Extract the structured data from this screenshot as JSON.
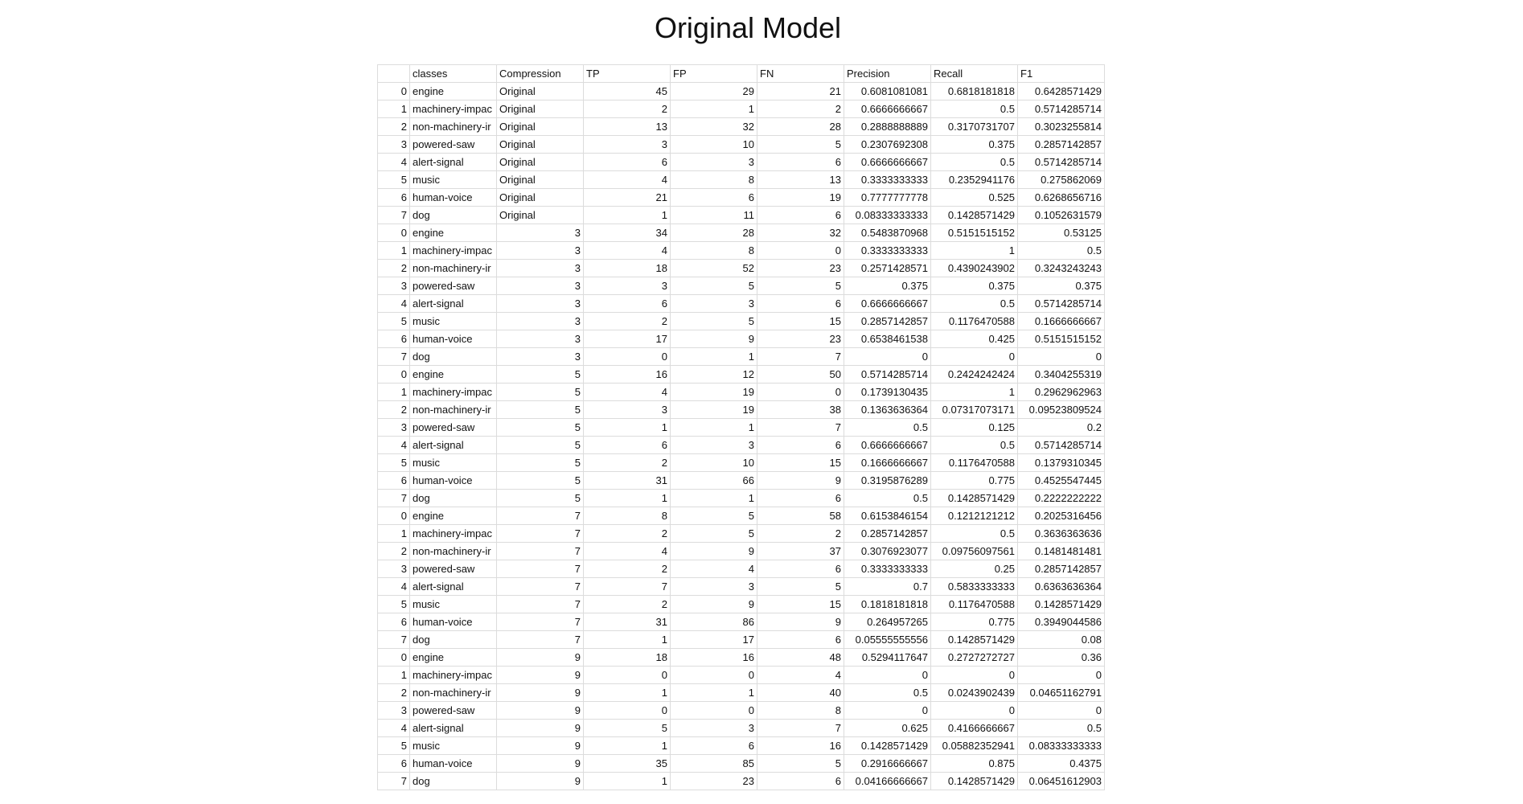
{
  "title": "Original Model",
  "chart_data": {
    "type": "table",
    "title": "Original Model",
    "columns": [
      "",
      "classes",
      "Compression",
      "TP",
      "FP",
      "FN",
      "Precision",
      "Recall",
      "F1"
    ],
    "rows": [
      [
        "0",
        "engine",
        "Original",
        "45",
        "29",
        "21",
        "0.6081081081",
        "0.6818181818",
        "0.6428571429"
      ],
      [
        "1",
        "machinery-impac",
        "Original",
        "2",
        "1",
        "2",
        "0.6666666667",
        "0.5",
        "0.5714285714"
      ],
      [
        "2",
        "non-machinery-ir",
        "Original",
        "13",
        "32",
        "28",
        "0.2888888889",
        "0.3170731707",
        "0.3023255814"
      ],
      [
        "3",
        "powered-saw",
        "Original",
        "3",
        "10",
        "5",
        "0.2307692308",
        "0.375",
        "0.2857142857"
      ],
      [
        "4",
        "alert-signal",
        "Original",
        "6",
        "3",
        "6",
        "0.6666666667",
        "0.5",
        "0.5714285714"
      ],
      [
        "5",
        "music",
        "Original",
        "4",
        "8",
        "13",
        "0.3333333333",
        "0.2352941176",
        "0.275862069"
      ],
      [
        "6",
        "human-voice",
        "Original",
        "21",
        "6",
        "19",
        "0.7777777778",
        "0.525",
        "0.6268656716"
      ],
      [
        "7",
        "dog",
        "Original",
        "1",
        "11",
        "6",
        "0.08333333333",
        "0.1428571429",
        "0.1052631579"
      ],
      [
        "0",
        "engine",
        "3",
        "34",
        "28",
        "32",
        "0.5483870968",
        "0.5151515152",
        "0.53125"
      ],
      [
        "1",
        "machinery-impac",
        "3",
        "4",
        "8",
        "0",
        "0.3333333333",
        "1",
        "0.5"
      ],
      [
        "2",
        "non-machinery-ir",
        "3",
        "18",
        "52",
        "23",
        "0.2571428571",
        "0.4390243902",
        "0.3243243243"
      ],
      [
        "3",
        "powered-saw",
        "3",
        "3",
        "5",
        "5",
        "0.375",
        "0.375",
        "0.375"
      ],
      [
        "4",
        "alert-signal",
        "3",
        "6",
        "3",
        "6",
        "0.6666666667",
        "0.5",
        "0.5714285714"
      ],
      [
        "5",
        "music",
        "3",
        "2",
        "5",
        "15",
        "0.2857142857",
        "0.1176470588",
        "0.1666666667"
      ],
      [
        "6",
        "human-voice",
        "3",
        "17",
        "9",
        "23",
        "0.6538461538",
        "0.425",
        "0.5151515152"
      ],
      [
        "7",
        "dog",
        "3",
        "0",
        "1",
        "7",
        "0",
        "0",
        "0"
      ],
      [
        "0",
        "engine",
        "5",
        "16",
        "12",
        "50",
        "0.5714285714",
        "0.2424242424",
        "0.3404255319"
      ],
      [
        "1",
        "machinery-impac",
        "5",
        "4",
        "19",
        "0",
        "0.1739130435",
        "1",
        "0.2962962963"
      ],
      [
        "2",
        "non-machinery-ir",
        "5",
        "3",
        "19",
        "38",
        "0.1363636364",
        "0.07317073171",
        "0.09523809524"
      ],
      [
        "3",
        "powered-saw",
        "5",
        "1",
        "1",
        "7",
        "0.5",
        "0.125",
        "0.2"
      ],
      [
        "4",
        "alert-signal",
        "5",
        "6",
        "3",
        "6",
        "0.6666666667",
        "0.5",
        "0.5714285714"
      ],
      [
        "5",
        "music",
        "5",
        "2",
        "10",
        "15",
        "0.1666666667",
        "0.1176470588",
        "0.1379310345"
      ],
      [
        "6",
        "human-voice",
        "5",
        "31",
        "66",
        "9",
        "0.3195876289",
        "0.775",
        "0.4525547445"
      ],
      [
        "7",
        "dog",
        "5",
        "1",
        "1",
        "6",
        "0.5",
        "0.1428571429",
        "0.2222222222"
      ],
      [
        "0",
        "engine",
        "7",
        "8",
        "5",
        "58",
        "0.6153846154",
        "0.1212121212",
        "0.2025316456"
      ],
      [
        "1",
        "machinery-impac",
        "7",
        "2",
        "5",
        "2",
        "0.2857142857",
        "0.5",
        "0.3636363636"
      ],
      [
        "2",
        "non-machinery-ir",
        "7",
        "4",
        "9",
        "37",
        "0.3076923077",
        "0.09756097561",
        "0.1481481481"
      ],
      [
        "3",
        "powered-saw",
        "7",
        "2",
        "4",
        "6",
        "0.3333333333",
        "0.25",
        "0.2857142857"
      ],
      [
        "4",
        "alert-signal",
        "7",
        "7",
        "3",
        "5",
        "0.7",
        "0.5833333333",
        "0.6363636364"
      ],
      [
        "5",
        "music",
        "7",
        "2",
        "9",
        "15",
        "0.1818181818",
        "0.1176470588",
        "0.1428571429"
      ],
      [
        "6",
        "human-voice",
        "7",
        "31",
        "86",
        "9",
        "0.264957265",
        "0.775",
        "0.3949044586"
      ],
      [
        "7",
        "dog",
        "7",
        "1",
        "17",
        "6",
        "0.05555555556",
        "0.1428571429",
        "0.08"
      ],
      [
        "0",
        "engine",
        "9",
        "18",
        "16",
        "48",
        "0.5294117647",
        "0.2727272727",
        "0.36"
      ],
      [
        "1",
        "machinery-impac",
        "9",
        "0",
        "0",
        "4",
        "0",
        "0",
        "0"
      ],
      [
        "2",
        "non-machinery-ir",
        "9",
        "1",
        "1",
        "40",
        "0.5",
        "0.0243902439",
        "0.04651162791"
      ],
      [
        "3",
        "powered-saw",
        "9",
        "0",
        "0",
        "8",
        "0",
        "0",
        "0"
      ],
      [
        "4",
        "alert-signal",
        "9",
        "5",
        "3",
        "7",
        "0.625",
        "0.4166666667",
        "0.5"
      ],
      [
        "5",
        "music",
        "9",
        "1",
        "6",
        "16",
        "0.1428571429",
        "0.05882352941",
        "0.08333333333"
      ],
      [
        "6",
        "human-voice",
        "9",
        "35",
        "85",
        "5",
        "0.2916666667",
        "0.875",
        "0.4375"
      ],
      [
        "7",
        "dog",
        "9",
        "1",
        "23",
        "6",
        "0.04166666667",
        "0.1428571429",
        "0.06451612903"
      ]
    ]
  }
}
